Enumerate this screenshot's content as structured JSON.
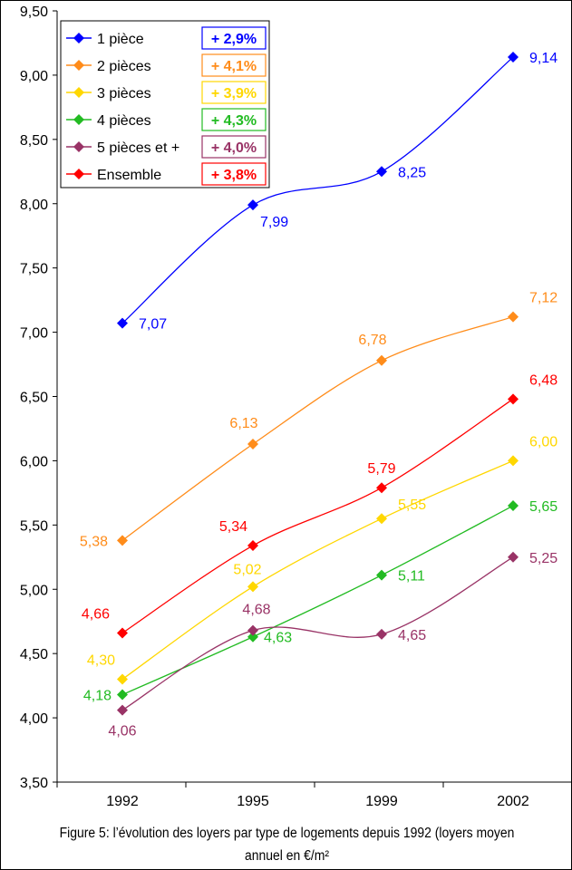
{
  "chart_data": {
    "type": "line",
    "categories": [
      "1992",
      "1995",
      "1999",
      "2002"
    ],
    "ylim": [
      3.5,
      9.5
    ],
    "yticks": [
      "3,50",
      "4,00",
      "4,50",
      "5,00",
      "5,50",
      "6,00",
      "6,50",
      "7,00",
      "7,50",
      "8,00",
      "8,50",
      "9,00",
      "9,50"
    ],
    "grid": false,
    "legend_position": "top-left",
    "series": [
      {
        "name": "1 pièce",
        "growth": "+ 2,9%",
        "color": "#0000ff",
        "values": [
          7.07,
          7.99,
          8.25,
          9.14
        ],
        "labels": [
          "7,07",
          "7,99",
          "8,25",
          "9,14"
        ]
      },
      {
        "name": "2 pièces",
        "growth": "+ 4,1%",
        "color": "#ff8c1a",
        "values": [
          5.38,
          6.13,
          6.78,
          7.12
        ],
        "labels": [
          "5,38",
          "6,13",
          "6,78",
          "7,12"
        ]
      },
      {
        "name": "3 pièces",
        "growth": "+ 3,9%",
        "color": "#ffd700",
        "values": [
          4.3,
          5.02,
          5.55,
          6.0
        ],
        "labels": [
          "4,30",
          "5,02",
          "5,55",
          "6,00"
        ]
      },
      {
        "name": "4 pièces",
        "growth": "+ 4,3%",
        "color": "#22bb22",
        "values": [
          4.18,
          4.63,
          5.11,
          5.65
        ],
        "labels": [
          "4,18",
          "4,63",
          "5,11",
          "5,65"
        ]
      },
      {
        "name": "5 pièces et +",
        "growth": "+ 4,0%",
        "color": "#993366",
        "values": [
          4.06,
          4.68,
          4.65,
          5.25
        ],
        "labels": [
          "4,06",
          "4,68",
          "4,65",
          "5,25"
        ]
      },
      {
        "name": "Ensemble",
        "growth": "+ 3,8%",
        "color": "#ff0000",
        "values": [
          4.66,
          5.34,
          5.79,
          6.48
        ],
        "labels": [
          "4,66",
          "5,34",
          "5,79",
          "6,48"
        ]
      }
    ]
  },
  "caption": "Figure 5: l’évolution des loyers par type de logements depuis 1992 (loyers moyen annuel en  €/m²"
}
